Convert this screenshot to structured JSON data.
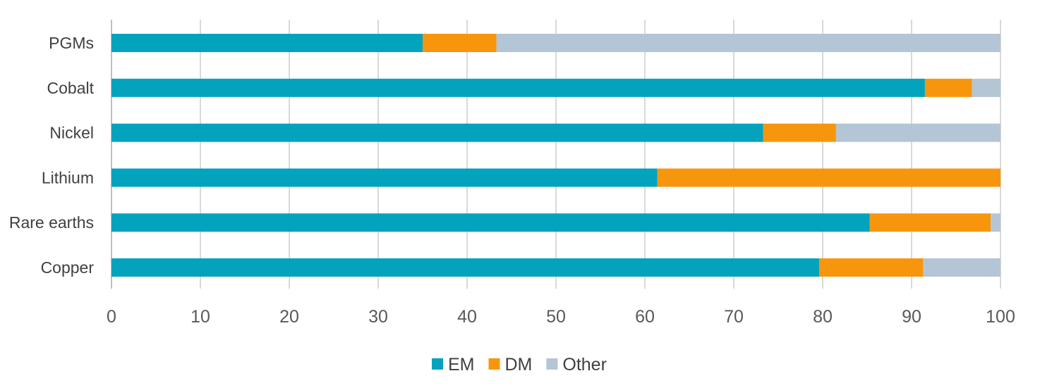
{
  "chart_data": {
    "type": "bar",
    "orientation": "horizontal",
    "stacked": true,
    "categories": [
      "PGMs",
      "Cobalt",
      "Nickel",
      "Lithium",
      "Rare earths",
      "Copper"
    ],
    "series": [
      {
        "name": "EM",
        "color": "#03A2BD",
        "values": [
          35,
          91.5,
          73.3,
          61.4,
          85.3,
          79.6
        ]
      },
      {
        "name": "DM",
        "color": "#F7960D",
        "values": [
          8.3,
          5.3,
          8.2,
          38.6,
          13.6,
          11.7
        ]
      },
      {
        "name": "Other",
        "color": "#B4C5D5",
        "values": [
          56.7,
          3.2,
          18.5,
          0,
          1.1,
          8.7
        ]
      }
    ],
    "xlim": [
      0,
      100
    ],
    "xticks": [
      "0",
      "10",
      "20",
      "30",
      "40",
      "50",
      "60",
      "70",
      "80",
      "90",
      "100"
    ],
    "grid": true,
    "legend_position": "bottom"
  }
}
